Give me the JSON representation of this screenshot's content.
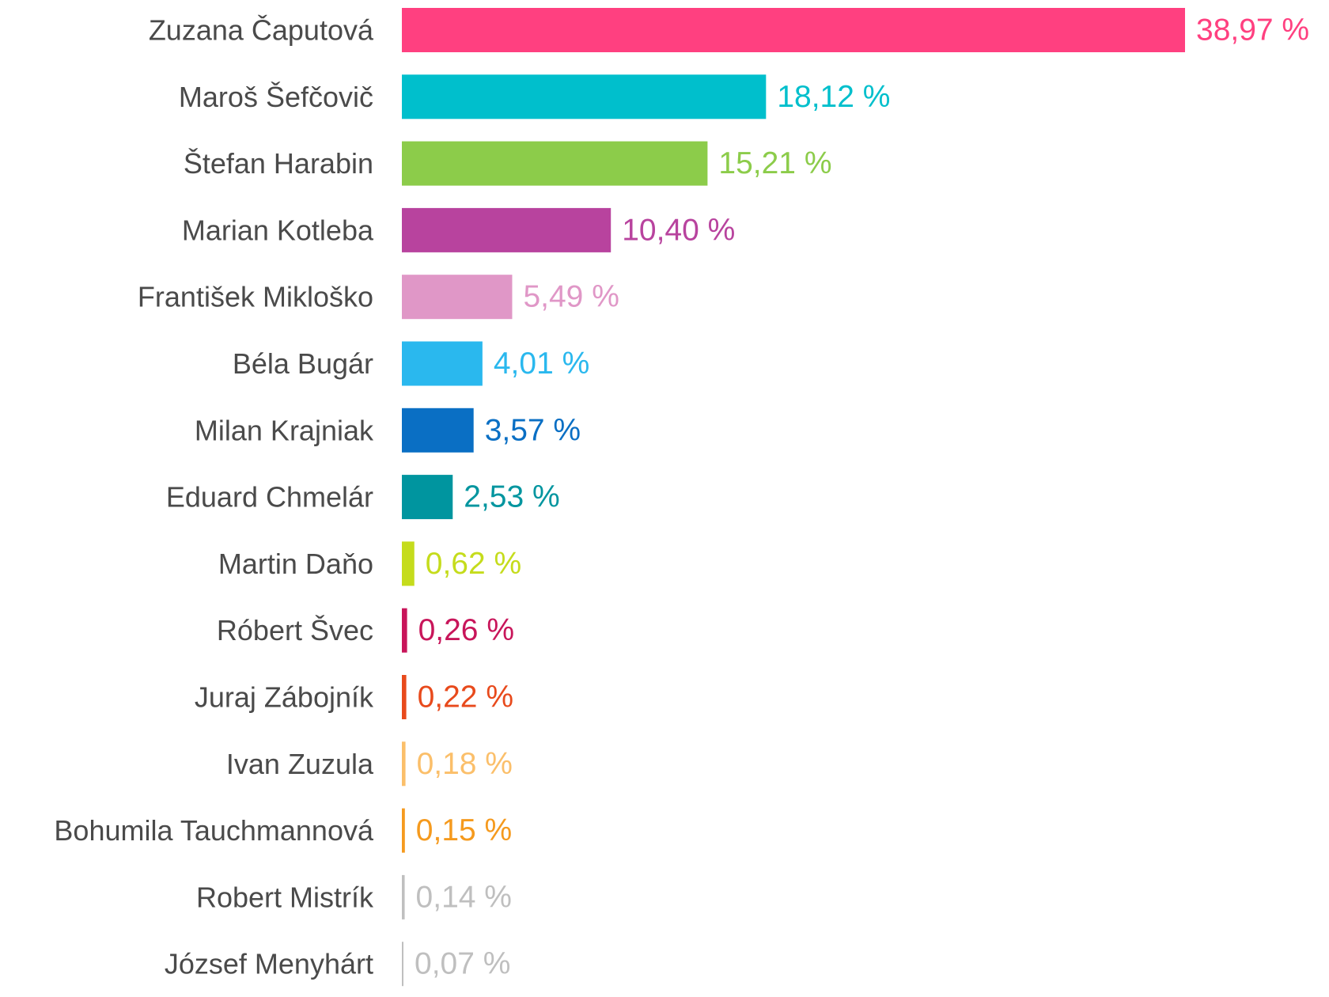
{
  "chart_data": {
    "type": "bar",
    "orientation": "horizontal",
    "title": "",
    "xlabel": "",
    "ylabel": "",
    "xlim": [
      0,
      38.97
    ],
    "grid": false,
    "legend": "none",
    "value_suffix": " %",
    "decimal_separator": ",",
    "categories": [
      "Zuzana Čaputová",
      "Maroš Šefčovič",
      "Štefan Harabin",
      "Marian Kotleba",
      "František Mikloško",
      "Béla Bugár",
      "Milan Krajniak",
      "Eduard Chmelár",
      "Martin Daňo",
      "Róbert Švec",
      "Juraj Zábojník",
      "Ivan Zuzula",
      "Bohumila Tauchmannová",
      "Robert Mistrík",
      "József Menyhárt"
    ],
    "values": [
      38.97,
      18.12,
      15.21,
      10.4,
      5.49,
      4.01,
      3.57,
      2.53,
      0.62,
      0.26,
      0.22,
      0.18,
      0.15,
      0.14,
      0.07
    ],
    "value_labels": [
      "38,97 %",
      "18,12 %",
      "15,21 %",
      "10,40 %",
      "5,49 %",
      "4,01 %",
      "3,57 %",
      "2,53 %",
      "0,62 %",
      "0,26 %",
      "0,22 %",
      "0,18 %",
      "0,15 %",
      "0,14 %",
      "0,07 %"
    ],
    "colors": [
      "#ff4080",
      "#00bfcc",
      "#8ccc4a",
      "#b8439e",
      "#e097c7",
      "#2ab8ee",
      "#0a6fc4",
      "#00959f",
      "#c5dc1c",
      "#c8155a",
      "#e84a1c",
      "#fbbf6a",
      "#f59a1e",
      "#bfbfbf",
      "#bfbfbf"
    ]
  }
}
